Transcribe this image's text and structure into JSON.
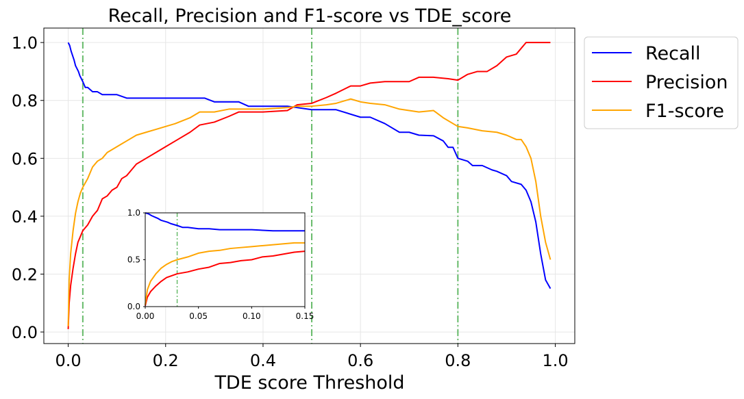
{
  "chart_data": [
    {
      "type": "line",
      "title": "Recall, Precision and F1-score vs TDE_score",
      "xlabel": "TDE score Threshold",
      "ylabel": "",
      "xlim": [
        -0.05,
        1.04
      ],
      "ylim": [
        -0.04,
        1.05
      ],
      "xticks": [
        0.0,
        0.2,
        0.4,
        0.6,
        0.8,
        1.0
      ],
      "xtick_labels": [
        "0.0",
        "0.2",
        "0.4",
        "0.6",
        "0.8",
        "1.0"
      ],
      "yticks": [
        0.0,
        0.2,
        0.4,
        0.6,
        0.8,
        1.0
      ],
      "ytick_labels": [
        "0.0",
        "0.2",
        "0.4",
        "0.6",
        "0.8",
        "1.0"
      ],
      "grid": true,
      "legend_position": "outside-right-top",
      "vlines": {
        "x": [
          0.03,
          0.5,
          0.8
        ],
        "color": "#4caf50",
        "style": "dash-dot"
      },
      "series": [
        {
          "name": "Recall",
          "color": "#0000ff",
          "x": [
            0.0,
            0.003,
            0.006,
            0.009,
            0.012,
            0.015,
            0.018,
            0.021,
            0.024,
            0.027,
            0.03,
            0.035,
            0.04,
            0.05,
            0.06,
            0.07,
            0.08,
            0.1,
            0.12,
            0.15,
            0.2,
            0.25,
            0.28,
            0.3,
            0.35,
            0.37,
            0.4,
            0.45,
            0.5,
            0.55,
            0.6,
            0.62,
            0.65,
            0.68,
            0.7,
            0.72,
            0.75,
            0.77,
            0.78,
            0.79,
            0.8,
            0.82,
            0.83,
            0.85,
            0.87,
            0.88,
            0.9,
            0.91,
            0.93,
            0.94,
            0.95,
            0.96,
            0.97,
            0.98,
            0.99
          ],
          "y": [
            1.0,
            0.99,
            0.97,
            0.955,
            0.94,
            0.92,
            0.91,
            0.9,
            0.885,
            0.875,
            0.865,
            0.845,
            0.845,
            0.83,
            0.83,
            0.82,
            0.82,
            0.82,
            0.808,
            0.808,
            0.808,
            0.808,
            0.808,
            0.795,
            0.795,
            0.78,
            0.78,
            0.78,
            0.768,
            0.768,
            0.742,
            0.742,
            0.72,
            0.69,
            0.69,
            0.68,
            0.678,
            0.66,
            0.638,
            0.638,
            0.6,
            0.59,
            0.575,
            0.575,
            0.56,
            0.555,
            0.54,
            0.52,
            0.51,
            0.49,
            0.45,
            0.38,
            0.27,
            0.18,
            0.15
          ]
        },
        {
          "name": "Precision",
          "color": "#ff0000",
          "x": [
            0.0,
            0.002,
            0.005,
            0.01,
            0.015,
            0.02,
            0.025,
            0.03,
            0.04,
            0.05,
            0.06,
            0.07,
            0.08,
            0.09,
            0.1,
            0.11,
            0.12,
            0.14,
            0.16,
            0.18,
            0.2,
            0.22,
            0.25,
            0.27,
            0.3,
            0.33,
            0.35,
            0.38,
            0.4,
            0.45,
            0.47,
            0.5,
            0.53,
            0.55,
            0.58,
            0.6,
            0.62,
            0.65,
            0.68,
            0.7,
            0.72,
            0.75,
            0.78,
            0.8,
            0.82,
            0.84,
            0.86,
            0.88,
            0.9,
            0.92,
            0.94,
            0.96,
            0.99
          ],
          "y": [
            0.01,
            0.1,
            0.16,
            0.22,
            0.27,
            0.31,
            0.33,
            0.35,
            0.37,
            0.4,
            0.42,
            0.46,
            0.47,
            0.49,
            0.5,
            0.53,
            0.54,
            0.58,
            0.6,
            0.62,
            0.64,
            0.66,
            0.69,
            0.715,
            0.725,
            0.745,
            0.76,
            0.76,
            0.76,
            0.765,
            0.785,
            0.79,
            0.81,
            0.825,
            0.85,
            0.85,
            0.86,
            0.865,
            0.865,
            0.865,
            0.88,
            0.88,
            0.875,
            0.87,
            0.89,
            0.9,
            0.9,
            0.92,
            0.95,
            0.96,
            1.0,
            1.0,
            1.0
          ]
        },
        {
          "name": "F1-score",
          "color": "#ffa500",
          "x": [
            0.0,
            0.002,
            0.005,
            0.01,
            0.015,
            0.02,
            0.025,
            0.03,
            0.04,
            0.05,
            0.06,
            0.07,
            0.08,
            0.09,
            0.1,
            0.11,
            0.12,
            0.14,
            0.16,
            0.18,
            0.2,
            0.22,
            0.25,
            0.27,
            0.3,
            0.33,
            0.35,
            0.38,
            0.4,
            0.45,
            0.47,
            0.5,
            0.53,
            0.55,
            0.58,
            0.6,
            0.62,
            0.65,
            0.68,
            0.7,
            0.72,
            0.75,
            0.77,
            0.8,
            0.82,
            0.85,
            0.88,
            0.9,
            0.92,
            0.93,
            0.94,
            0.95,
            0.96,
            0.97,
            0.98,
            0.99
          ],
          "y": [
            0.02,
            0.18,
            0.27,
            0.35,
            0.41,
            0.45,
            0.48,
            0.5,
            0.53,
            0.57,
            0.59,
            0.6,
            0.62,
            0.63,
            0.64,
            0.65,
            0.66,
            0.68,
            0.69,
            0.7,
            0.71,
            0.72,
            0.74,
            0.76,
            0.76,
            0.77,
            0.77,
            0.77,
            0.77,
            0.775,
            0.78,
            0.78,
            0.785,
            0.79,
            0.805,
            0.795,
            0.79,
            0.785,
            0.77,
            0.765,
            0.76,
            0.765,
            0.74,
            0.71,
            0.705,
            0.695,
            0.69,
            0.68,
            0.665,
            0.665,
            0.64,
            0.6,
            0.52,
            0.4,
            0.31,
            0.25
          ]
        }
      ]
    },
    {
      "type": "line",
      "title": "",
      "xlabel": "",
      "ylabel": "",
      "xlim": [
        0.0,
        0.15
      ],
      "ylim": [
        0.0,
        1.0
      ],
      "xticks": [
        0.0,
        0.05,
        0.1,
        0.15
      ],
      "xtick_labels": [
        "0.00",
        "0.05",
        "0.10",
        "0.15"
      ],
      "yticks": [
        0.0,
        0.5,
        1.0
      ],
      "ytick_labels": [
        "0.0",
        "0.5",
        "1.0"
      ],
      "grid": false,
      "vlines": {
        "x": [
          0.03
        ],
        "color": "#4caf50",
        "style": "dash-dot"
      },
      "series": [
        {
          "name": "Recall",
          "color": "#0000ff",
          "x": [
            0.0,
            0.003,
            0.006,
            0.009,
            0.012,
            0.015,
            0.018,
            0.021,
            0.024,
            0.027,
            0.03,
            0.035,
            0.04,
            0.05,
            0.06,
            0.07,
            0.08,
            0.1,
            0.12,
            0.15
          ],
          "y": [
            1.0,
            0.99,
            0.97,
            0.955,
            0.94,
            0.92,
            0.91,
            0.9,
            0.885,
            0.875,
            0.865,
            0.845,
            0.845,
            0.83,
            0.83,
            0.82,
            0.82,
            0.82,
            0.808,
            0.808
          ]
        },
        {
          "name": "Precision",
          "color": "#ff0000",
          "x": [
            0.0,
            0.002,
            0.005,
            0.01,
            0.015,
            0.02,
            0.025,
            0.03,
            0.04,
            0.05,
            0.06,
            0.07,
            0.08,
            0.09,
            0.1,
            0.11,
            0.12,
            0.14,
            0.15
          ],
          "y": [
            0.01,
            0.1,
            0.16,
            0.22,
            0.27,
            0.31,
            0.33,
            0.35,
            0.37,
            0.4,
            0.42,
            0.46,
            0.47,
            0.49,
            0.5,
            0.53,
            0.54,
            0.58,
            0.59
          ]
        },
        {
          "name": "F1-score",
          "color": "#ffa500",
          "x": [
            0.0,
            0.002,
            0.005,
            0.01,
            0.015,
            0.02,
            0.025,
            0.03,
            0.04,
            0.05,
            0.06,
            0.07,
            0.08,
            0.09,
            0.1,
            0.11,
            0.12,
            0.14,
            0.15
          ],
          "y": [
            0.02,
            0.18,
            0.27,
            0.35,
            0.41,
            0.45,
            0.48,
            0.5,
            0.53,
            0.57,
            0.59,
            0.6,
            0.62,
            0.63,
            0.64,
            0.65,
            0.66,
            0.68,
            0.68
          ]
        }
      ]
    }
  ]
}
